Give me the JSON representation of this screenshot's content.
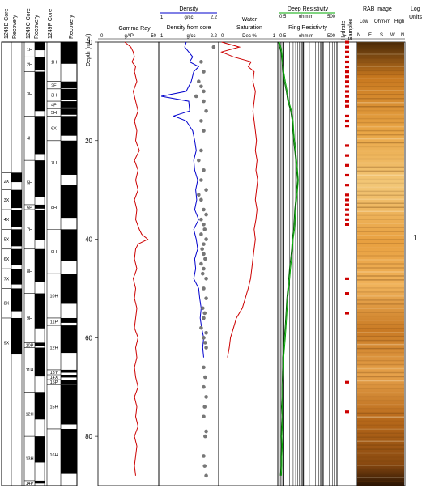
{
  "core_columns": [
    {
      "label": "1249B Core",
      "label2": "Recovery",
      "cores": []
    },
    {
      "label": "1249C Core",
      "label2": "Recovery",
      "cores": [
        {
          "label": "1H",
          "top": 0,
          "bot": 3
        },
        {
          "label": "2H",
          "top": 3,
          "bot": 6
        },
        {
          "label": "3H",
          "top": 6,
          "bot": 15
        },
        {
          "label": "4H",
          "top": 15,
          "bot": 24
        },
        {
          "label": "5H",
          "top": 24,
          "bot": 33
        },
        {
          "label": "6P",
          "top": 33,
          "bot": 34
        },
        {
          "label": "7H",
          "top": 34,
          "bot": 42
        },
        {
          "label": "8H",
          "top": 42,
          "bot": 51
        },
        {
          "label": "9H",
          "top": 51,
          "bot": 61
        },
        {
          "label": "10P",
          "top": 61,
          "bot": 62
        },
        {
          "label": "11H",
          "top": 62,
          "bot": 71
        },
        {
          "label": "12H",
          "top": 71,
          "bot": 80
        },
        {
          "label": "13H",
          "top": 80,
          "bot": 89
        },
        {
          "label": "14P",
          "top": 89,
          "bot": 90
        }
      ]
    },
    {
      "label": "1249F Core",
      "label2": "Recovery",
      "cores": [
        {
          "label": "1H",
          "top": 0,
          "bot": 8
        },
        {
          "label": "2E",
          "top": 8,
          "bot": 9.5
        },
        {
          "label": "3H",
          "top": 9.5,
          "bot": 12
        },
        {
          "label": "4P",
          "top": 12,
          "bot": 13.5
        },
        {
          "label": "5H",
          "top": 13.5,
          "bot": 15
        },
        {
          "label": "6X",
          "top": 15,
          "bot": 20
        },
        {
          "label": "7H",
          "top": 20,
          "bot": 29
        },
        {
          "label": "8H",
          "top": 29,
          "bot": 38
        },
        {
          "label": "9H",
          "top": 38,
          "bot": 47
        },
        {
          "label": "10H",
          "top": 47,
          "bot": 56
        },
        {
          "label": "11P",
          "top": 56,
          "bot": 57.5
        },
        {
          "label": "12H",
          "top": 57.5,
          "bot": 66.5
        },
        {
          "label": "13Y",
          "top": 66.5,
          "bot": 67.5
        },
        {
          "label": "14X",
          "top": 67.5,
          "bot": 68.5
        },
        {
          "label": "15P",
          "top": 68.5,
          "bot": 69.5
        },
        {
          "label": "15H",
          "top": 69.5,
          "bot": 78.5
        },
        {
          "label": "16H",
          "top": 78.5,
          "bot": 89
        }
      ]
    }
  ],
  "core_columns_extra": {
    "col0_cores": [
      {
        "label": "2X",
        "top": 26.5,
        "bot": 30
      },
      {
        "label": "3X",
        "top": 30,
        "bot": 34
      },
      {
        "label": "4X",
        "top": 34,
        "bot": 38
      },
      {
        "label": "5X",
        "top": 38,
        "bot": 42
      },
      {
        "label": "6X",
        "top": 42,
        "bot": 46
      },
      {
        "label": "7X",
        "top": 46,
        "bot": 50
      },
      {
        "label": "8X",
        "top": 50,
        "bot": 56
      },
      {
        "label": "9X",
        "top": 56,
        "bot": 66
      }
    ]
  },
  "depth_axis": {
    "label": "Depth (mbsf)",
    "ticks": [
      "0",
      "20",
      "40",
      "60",
      "80"
    ]
  },
  "tracks": {
    "gamma": {
      "title": "Gamma Ray",
      "unit": "gAPI",
      "min": "0",
      "max": "50",
      "color": "#cc0000"
    },
    "density": {
      "title": "Density",
      "unit": "g/cc",
      "min": "1",
      "max": "2.2",
      "title2": "Density from core",
      "unit2": "g/cc",
      "min2": "1",
      "max2": "2.2",
      "color": "#0000cc",
      "dot_color": "#777777"
    },
    "water": {
      "title": "Water",
      "title2": "Saturation",
      "unit": "Dec %",
      "min": "0",
      "max": "1",
      "color": "#cc0000"
    },
    "resistivity": {
      "title": "Deep Resistivity",
      "unit": "ohm.m",
      "min": "0.5",
      "max": "500",
      "title2": "Ring Resistivity",
      "unit2": "ohm.m",
      "min2": "0.5",
      "max2": "500",
      "color_deep": "#00aa00",
      "color_ring": "#006600"
    },
    "hydrate": {
      "title": "Hydrate",
      "title2": "Samples",
      "color": "#cc0000"
    },
    "rab": {
      "title": "RAB Image",
      "low": "Low",
      "mid": "Ohm-m",
      "high": "High",
      "dirs": [
        "N",
        "E",
        "S",
        "W",
        "N"
      ]
    },
    "units": {
      "title": "Log",
      "title2": "Units",
      "unit_label": "1"
    }
  },
  "chart_data": {
    "type": "line",
    "y_axis": {
      "label": "Depth (mbsf)",
      "range": [
        0,
        90
      ],
      "reversed": true
    },
    "series": [
      {
        "name": "Gamma Ray",
        "unit": "gAPI",
        "xlim": [
          0,
          50
        ],
        "depth": [
          0,
          1,
          2,
          3,
          4,
          5,
          6,
          8,
          10,
          12,
          14,
          16,
          18,
          20,
          22,
          24,
          26,
          28,
          30,
          32,
          34,
          36,
          38,
          39,
          40,
          41,
          42,
          44,
          46,
          48,
          50,
          52,
          54,
          56,
          58,
          60,
          62,
          64,
          66,
          68,
          70,
          72,
          74,
          76,
          78,
          80,
          82,
          84,
          86,
          88
        ],
        "values": [
          22,
          27,
          29,
          30,
          28,
          31,
          30,
          32,
          29,
          31,
          33,
          30,
          32,
          31,
          34,
          30,
          33,
          31,
          33,
          30,
          32,
          31,
          34,
          36,
          41,
          33,
          31,
          30,
          32,
          29,
          31,
          30,
          32,
          31,
          30,
          33,
          31,
          32,
          30,
          31,
          33,
          30,
          32,
          31,
          33,
          30,
          32,
          31,
          30,
          31
        ]
      },
      {
        "name": "Density",
        "unit": "g/cc",
        "xlim": [
          1,
          2.2
        ],
        "depth": [
          0,
          1,
          2,
          3,
          4,
          5,
          6,
          8,
          10,
          11,
          12,
          14,
          15,
          16,
          18,
          20,
          22,
          24,
          26,
          28,
          30,
          32,
          34,
          36,
          38,
          40,
          42,
          44,
          46,
          48,
          50,
          52,
          54,
          56,
          58,
          60,
          62,
          64
        ],
        "values": [
          1.55,
          1.52,
          1.6,
          1.68,
          1.62,
          1.8,
          1.7,
          1.65,
          1.55,
          1.05,
          1.6,
          1.62,
          1.3,
          1.55,
          1.68,
          1.72,
          1.75,
          1.7,
          1.72,
          1.78,
          1.74,
          1.76,
          1.72,
          1.8,
          1.7,
          1.75,
          1.78,
          1.72,
          1.74,
          1.7,
          1.8,
          1.82,
          1.85,
          1.83,
          1.86,
          1.9,
          1.88,
          1.9
        ]
      },
      {
        "name": "Density from core",
        "unit": "g/cc",
        "xlim": [
          1,
          2.2
        ],
        "type": "scatter",
        "depth": [
          1,
          4,
          6,
          8,
          9,
          10,
          11,
          12,
          14,
          16,
          18,
          22,
          24,
          26,
          28,
          30,
          31,
          32,
          34,
          35,
          36,
          37,
          38,
          39,
          40,
          41,
          42,
          43,
          44,
          45,
          46,
          47,
          48,
          50,
          52,
          54,
          55,
          56,
          58,
          59,
          60,
          61,
          62,
          66,
          68,
          70,
          72,
          74,
          76,
          79,
          80,
          84,
          86,
          88
        ],
        "values": [
          2.1,
          1.85,
          1.9,
          1.8,
          1.85,
          1.9,
          1.75,
          1.9,
          1.95,
          1.85,
          1.9,
          1.85,
          1.8,
          1.9,
          1.85,
          1.95,
          1.8,
          1.85,
          1.9,
          1.95,
          1.85,
          1.9,
          1.92,
          1.85,
          1.95,
          1.9,
          1.87,
          1.9,
          1.93,
          1.85,
          1.9,
          1.88,
          1.95,
          1.9,
          1.95,
          1.88,
          1.92,
          1.9,
          1.85,
          1.95,
          1.9,
          1.93,
          1.95,
          1.9,
          1.93,
          1.9,
          1.95,
          1.92,
          1.9,
          1.95,
          1.93,
          1.9,
          1.92,
          1.95
        ]
      },
      {
        "name": "Water Saturation",
        "unit": "Dec %",
        "xlim": [
          0,
          1
        ],
        "depth": [
          0,
          1,
          2,
          3,
          4,
          5,
          6,
          8,
          10,
          12,
          14,
          16,
          18,
          20,
          22,
          24,
          26,
          28,
          30,
          32,
          34,
          36,
          38,
          40,
          42,
          44,
          46,
          48,
          50,
          52,
          54,
          56,
          58,
          60,
          62,
          64
        ],
        "values": [
          0.05,
          0.35,
          0.05,
          0.25,
          0.55,
          0.5,
          0.6,
          0.58,
          0.62,
          0.6,
          0.58,
          0.6,
          0.62,
          0.64,
          0.62,
          0.65,
          0.63,
          0.66,
          0.64,
          0.62,
          0.65,
          0.63,
          0.6,
          0.62,
          0.6,
          0.58,
          0.56,
          0.54,
          0.5,
          0.45,
          0.4,
          0.3,
          0.25,
          0.2,
          0.18,
          0.15
        ]
      },
      {
        "name": "Deep Resistivity",
        "unit": "ohm.m",
        "xlim": [
          0.5,
          500
        ],
        "log": true,
        "depth": [
          0,
          1,
          2,
          4,
          6,
          8,
          10,
          12,
          14,
          16,
          18,
          20,
          22,
          24,
          26,
          28,
          30,
          32,
          34,
          36,
          38,
          40,
          42,
          44,
          46,
          48,
          50,
          52,
          54,
          56,
          58,
          60,
          62,
          64,
          66,
          68,
          70,
          72,
          74,
          76,
          78,
          80,
          82,
          84,
          86,
          88
        ],
        "values": [
          0.6,
          0.7,
          0.8,
          0.9,
          1.0,
          1.2,
          1.5,
          1.8,
          2.5,
          3.0,
          3.2,
          3.5,
          4.0,
          4.5,
          5.0,
          5.5,
          5.0,
          4.5,
          4.0,
          3.8,
          3.5,
          3.0,
          2.8,
          2.5,
          2.2,
          2.0,
          1.8,
          1.6,
          1.5,
          1.4,
          1.3,
          1.2,
          1.1,
          1.0,
          1.0,
          0.95,
          0.9,
          0.9,
          0.85,
          0.9,
          0.85,
          0.8,
          0.85,
          0.8,
          0.8,
          0.75
        ]
      }
    ],
    "hydrate_sample_depths": [
      0,
      1,
      2,
      3,
      4,
      5,
      6,
      7,
      8,
      9,
      10,
      11,
      12,
      13,
      15,
      16,
      17,
      21,
      23,
      25,
      27,
      29,
      31,
      32,
      33,
      34,
      35,
      36,
      37,
      48,
      51,
      55,
      69,
      75
    ]
  }
}
